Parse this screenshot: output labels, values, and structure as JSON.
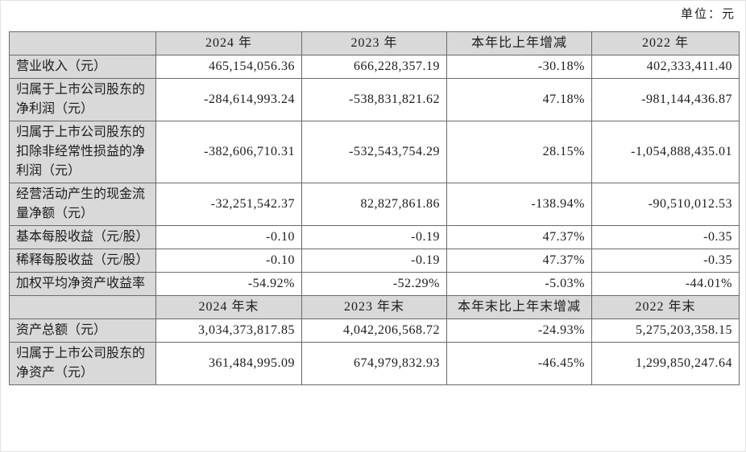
{
  "unit_label": "单位：元",
  "colors": {
    "header_bg": "#d9d9d9",
    "label_bg": "#d9d9d9",
    "border": "#6a6a6a",
    "text": "#1c1c1c"
  },
  "table": {
    "sections": [
      {
        "header": [
          "",
          "2024 年",
          "2023 年",
          "本年比上年增减",
          "2022 年"
        ],
        "rows": [
          {
            "label": "营业收入（元）",
            "values": [
              "465,154,056.36",
              "666,228,357.19",
              "-30.18%",
              "402,333,411.40"
            ]
          },
          {
            "label": "归属于上市公司股东的净利润（元）",
            "values": [
              "-284,614,993.24",
              "-538,831,821.62",
              "47.18%",
              "-981,144,436.87"
            ]
          },
          {
            "label": "归属于上市公司股东的扣除非经常性损益的净利润（元）",
            "values": [
              "-382,606,710.31",
              "-532,543,754.29",
              "28.15%",
              "-1,054,888,435.01"
            ]
          },
          {
            "label": "经营活动产生的现金流量净额（元）",
            "values": [
              "-32,251,542.37",
              "82,827,861.86",
              "-138.94%",
              "-90,510,012.53"
            ]
          },
          {
            "label": "基本每股收益（元/股）",
            "values": [
              "-0.10",
              "-0.19",
              "47.37%",
              "-0.35"
            ]
          },
          {
            "label": "稀释每股收益（元/股）",
            "values": [
              "-0.10",
              "-0.19",
              "47.37%",
              "-0.35"
            ]
          },
          {
            "label": "加权平均净资产收益率",
            "values": [
              "-54.92%",
              "-52.29%",
              "-5.03%",
              "-44.01%"
            ]
          }
        ]
      },
      {
        "header": [
          "",
          "2024 年末",
          "2023 年末",
          "本年末比上年末增减",
          "2022 年末"
        ],
        "rows": [
          {
            "label": "资产总额（元）",
            "values": [
              "3,034,373,817.85",
              "4,042,206,568.72",
              "-24.93%",
              "5,275,203,358.15"
            ]
          },
          {
            "label": "归属于上市公司股东的净资产（元）",
            "values": [
              "361,484,995.09",
              "674,979,832.93",
              "-46.45%",
              "1,299,850,247.64"
            ]
          }
        ]
      }
    ]
  }
}
